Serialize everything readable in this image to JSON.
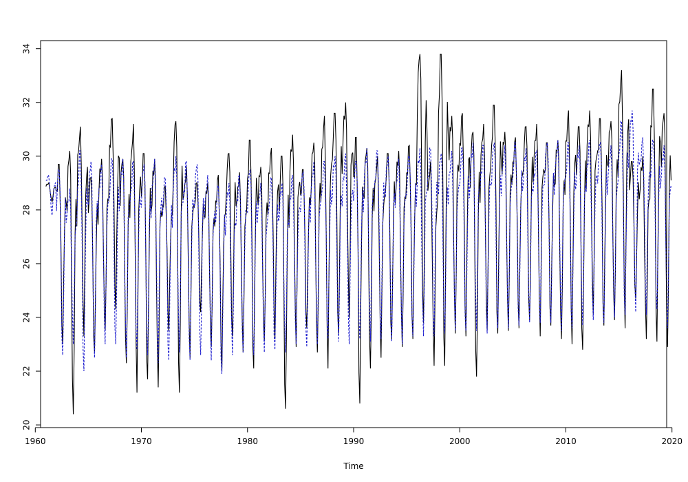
{
  "chart_data": {
    "type": "line",
    "title": "",
    "xlabel": "Time",
    "ylabel": "",
    "xlim": [
      1960.5,
      2019.5
    ],
    "ylim": [
      19.9,
      34.3
    ],
    "x_ticks": [
      1960,
      1970,
      1980,
      1990,
      2000,
      2010,
      2020
    ],
    "y_ticks": [
      20,
      22,
      24,
      26,
      28,
      30,
      32,
      34
    ],
    "x_tick_labels": [
      "1960",
      "1970",
      "1980",
      "1990",
      "2000",
      "2010",
      "2020"
    ],
    "y_tick_labels": [
      "20",
      "22",
      "24",
      "26",
      "28",
      "30",
      "32",
      "34"
    ],
    "grid": false,
    "sampling": "monthly",
    "x_start": 1961.0,
    "series": [
      {
        "style": "solid",
        "color": "#000000",
        "annual_peaks": [
          29.0,
          29.7,
          30.2,
          31.1,
          29.2,
          29.9,
          31.4,
          29.9,
          31.2,
          30.1,
          29.9,
          28.9,
          31.3,
          29.6,
          29.0,
          29.0,
          29.3,
          30.1,
          29.4,
          30.6,
          29.6,
          30.3,
          30.0,
          30.8,
          29.5,
          30.5,
          31.5,
          31.6,
          32.0,
          30.7,
          30.3,
          30.0,
          30.1,
          30.2,
          30.4,
          33.8,
          29.8,
          33.8,
          31.5,
          31.6,
          30.9,
          31.2,
          31.9,
          30.9,
          30.7,
          31.1,
          31.2,
          30.5,
          30.6,
          31.7,
          31.1,
          31.7,
          31.4,
          31.3,
          33.2,
          29.8,
          30.0,
          32.5,
          31.6
        ],
        "annual_troughs": [
          28.3,
          23.0,
          20.4,
          23.3,
          22.7,
          23.5,
          24.3,
          22.3,
          21.2,
          21.7,
          21.4,
          23.5,
          21.2,
          22.5,
          24.2,
          22.9,
          22.0,
          23.3,
          22.7,
          22.1,
          23.1,
          23.2,
          20.6,
          22.9,
          23.6,
          22.7,
          22.1,
          23.4,
          24.0,
          20.8,
          22.1,
          22.5,
          23.2,
          22.9,
          23.2,
          23.8,
          22.2,
          22.2,
          23.4,
          23.3,
          21.8,
          23.5,
          23.4,
          23.5,
          23.6,
          23.9,
          23.3,
          23.7,
          23.2,
          23.0,
          22.8,
          24.1,
          23.7,
          23.9,
          23.6,
          24.7,
          23.2,
          23.1,
          22.9
        ]
      },
      {
        "style": "dashed",
        "color": "#1f1fcf",
        "annual_peaks": [
          29.3,
          29.5,
          28.8,
          30.2,
          29.8,
          29.7,
          29.9,
          29.9,
          29.8,
          29.7,
          29.9,
          29.2,
          30.0,
          29.8,
          29.7,
          29.3,
          28.9,
          29.0,
          29.3,
          29.5,
          29.0,
          29.2,
          29.0,
          29.3,
          29.4,
          29.8,
          29.8,
          30.0,
          30.1,
          29.8,
          30.3,
          30.2,
          30.0,
          29.9,
          30.0,
          30.3,
          30.3,
          30.1,
          30.2,
          30.3,
          30.5,
          30.4,
          30.5,
          30.4,
          30.5,
          30.3,
          30.2,
          30.5,
          30.6,
          30.5,
          30.4,
          30.6,
          30.5,
          30.4,
          31.3,
          31.7,
          30.7,
          30.6,
          30.4
        ],
        "annual_troughs": [
          27.8,
          22.6,
          23.0,
          22.0,
          22.5,
          23.0,
          23.0,
          22.5,
          22.8,
          22.6,
          22.3,
          22.4,
          22.7,
          22.4,
          22.6,
          22.4,
          21.9,
          22.6,
          22.7,
          22.6,
          22.7,
          22.8,
          22.7,
          23.0,
          22.9,
          23.0,
          23.2,
          23.1,
          23.0,
          23.2,
          23.1,
          23.2,
          23.1,
          23.0,
          23.3,
          23.3,
          23.3,
          23.4,
          23.5,
          23.5,
          23.5,
          23.4,
          23.6,
          23.6,
          23.7,
          23.8,
          23.8,
          23.8,
          23.5,
          23.6,
          23.7,
          23.9,
          23.8,
          24.0,
          24.1,
          24.2,
          24.1,
          24.3,
          23.6
        ]
      }
    ]
  }
}
